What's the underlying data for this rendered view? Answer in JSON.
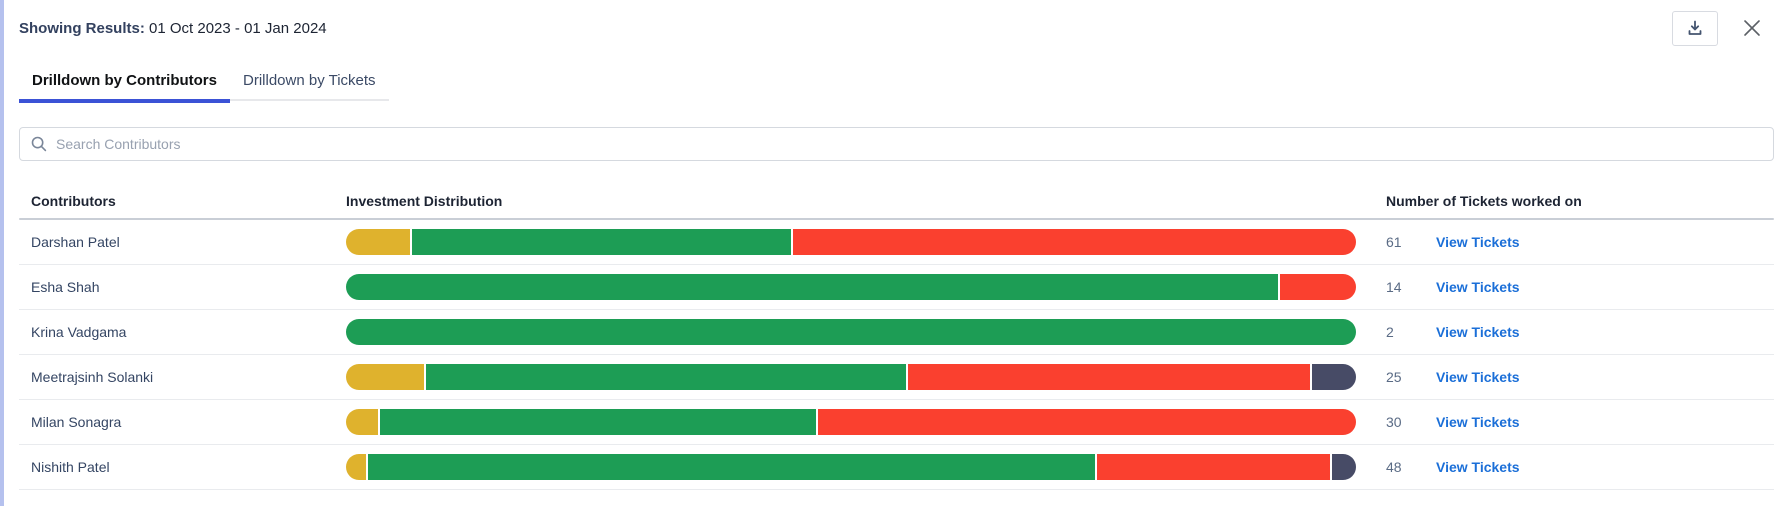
{
  "colors": {
    "yellow": "#dfb22d",
    "green": "#1d9d55",
    "red": "#fa402f",
    "dark": "#474b66",
    "accent": "#3b52d6",
    "link": "#1b6fd8"
  },
  "header": {
    "label": "Showing Results:",
    "value": "01 Oct 2023 - 01 Jan 2024"
  },
  "toolbar": {
    "download_icon": "download-icon",
    "close_icon": "close-icon"
  },
  "tabs": [
    {
      "label": "Drilldown by Contributors",
      "active": true
    },
    {
      "label": "Drilldown by Tickets",
      "active": false
    }
  ],
  "search": {
    "placeholder": "Search Contributors",
    "icon": "search-icon"
  },
  "table": {
    "columns": [
      "Contributors",
      "Investment Distribution",
      "Number of Tickets worked on"
    ],
    "view_tickets_label": "View Tickets",
    "rows": [
      {
        "name": "Darshan Patel",
        "tickets": "61",
        "segments": [
          {
            "color": "yellow",
            "pct": 6.4
          },
          {
            "color": "green",
            "pct": 37.6
          },
          {
            "color": "red",
            "pct": 56.0
          }
        ]
      },
      {
        "name": "Esha Shah",
        "tickets": "14",
        "segments": [
          {
            "color": "green",
            "pct": 92.5
          },
          {
            "color": "red",
            "pct": 7.5
          }
        ]
      },
      {
        "name": "Krina Vadgama",
        "tickets": "2",
        "segments": [
          {
            "color": "green",
            "pct": 100
          }
        ]
      },
      {
        "name": "Meetrajsinh Solanki",
        "tickets": "25",
        "segments": [
          {
            "color": "yellow",
            "pct": 7.8
          },
          {
            "color": "green",
            "pct": 47.8
          },
          {
            "color": "red",
            "pct": 40.0
          },
          {
            "color": "dark",
            "pct": 4.4
          }
        ]
      },
      {
        "name": "Milan Sonagra",
        "tickets": "30",
        "segments": [
          {
            "color": "yellow",
            "pct": 3.2
          },
          {
            "color": "green",
            "pct": 43.3
          },
          {
            "color": "red",
            "pct": 53.5
          }
        ]
      },
      {
        "name": "Nishith Patel",
        "tickets": "48",
        "segments": [
          {
            "color": "yellow",
            "pct": 2.0
          },
          {
            "color": "green",
            "pct": 72.4
          },
          {
            "color": "red",
            "pct": 23.2
          },
          {
            "color": "dark",
            "pct": 2.4
          }
        ]
      }
    ]
  }
}
